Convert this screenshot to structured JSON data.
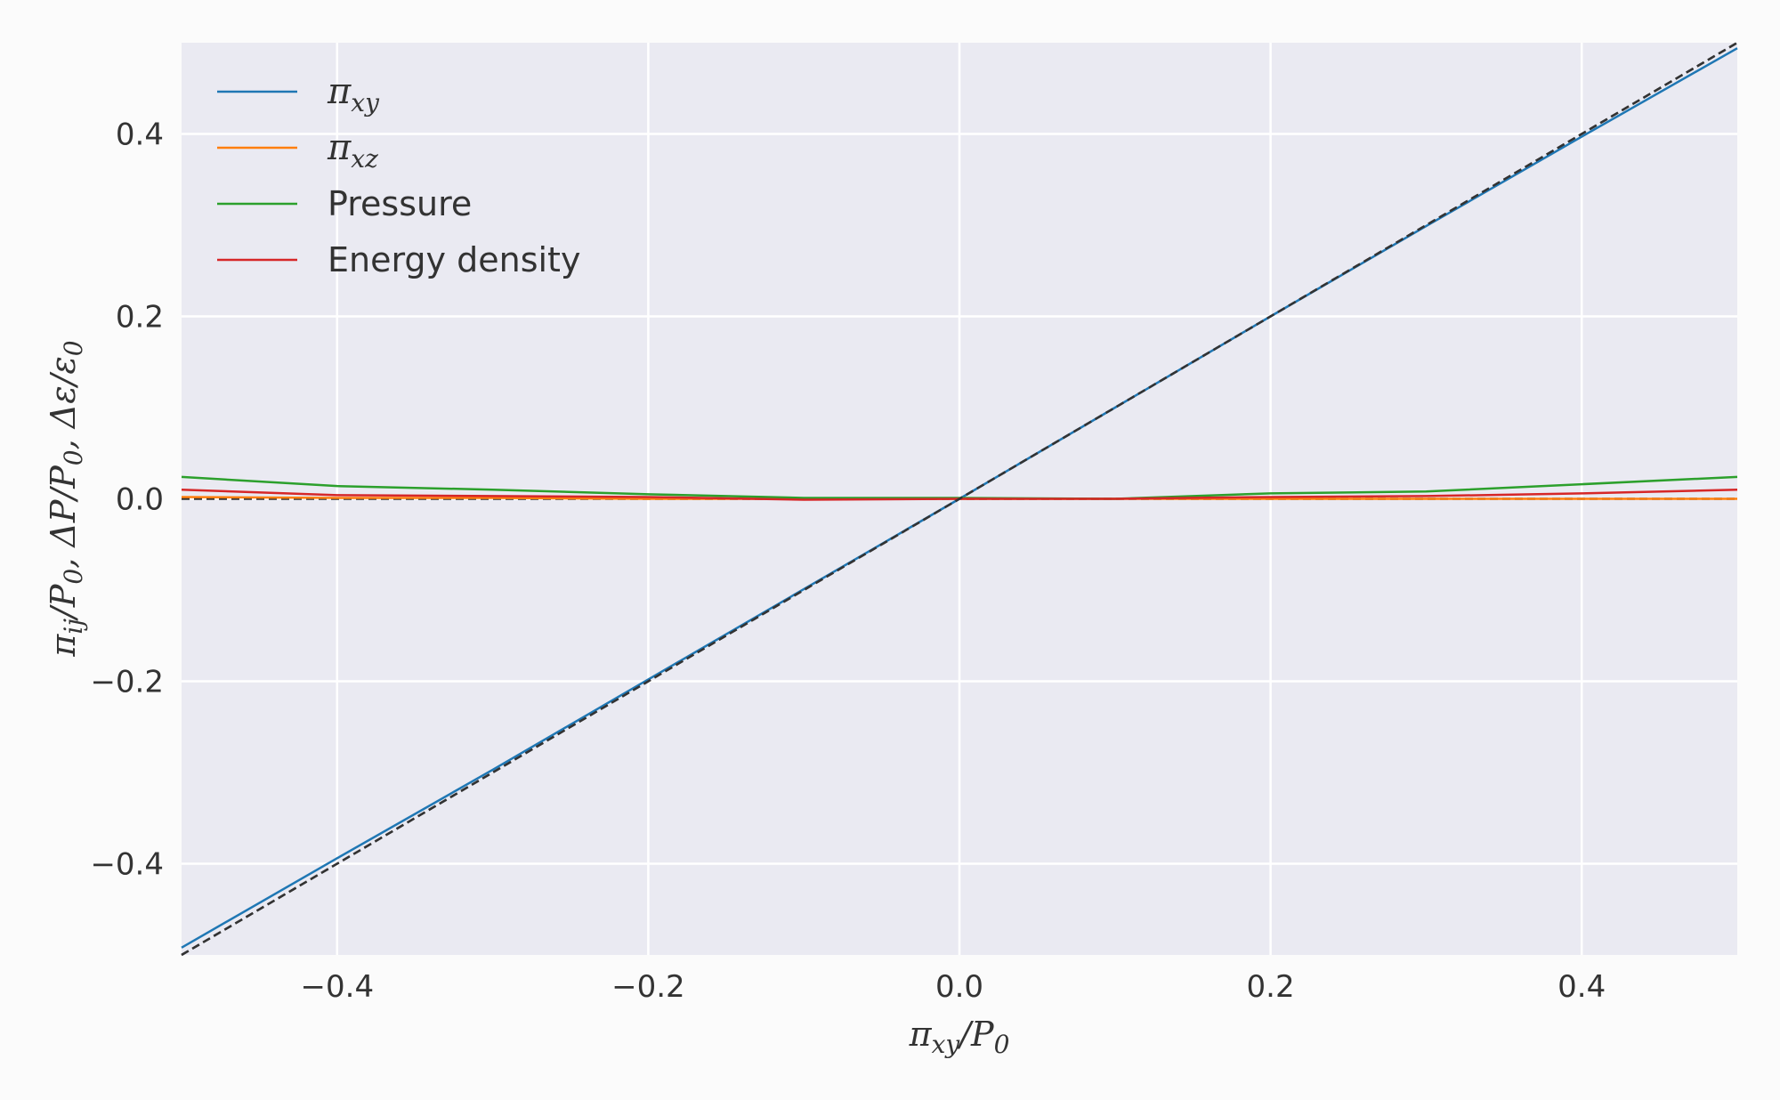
{
  "chart_data": {
    "type": "line",
    "title": "",
    "xlabel": "π_xy/P_0",
    "ylabel": "π_ij/P_0, ΔP/P_0, Δε/ε_0",
    "xlim": [
      -0.5,
      0.5
    ],
    "ylim": [
      -0.5,
      0.5
    ],
    "xticks": [
      -0.4,
      -0.2,
      0.0,
      0.2,
      0.4
    ],
    "yticks": [
      -0.4,
      -0.2,
      0.0,
      0.2,
      0.4
    ],
    "xtick_labels": [
      "−0.4",
      "−0.2",
      "0.0",
      "0.2",
      "0.4"
    ],
    "ytick_labels": [
      "−0.4",
      "−0.2",
      "0.0",
      "0.2",
      "0.4"
    ],
    "grid": true,
    "background": "#eaeaf2",
    "legend_position": "top-left",
    "x": [
      -0.5,
      -0.4,
      -0.3,
      -0.2,
      -0.1,
      0.0,
      0.1,
      0.2,
      0.3,
      0.4,
      0.5
    ],
    "series": [
      {
        "name": "π_xy",
        "legend_base": "π",
        "legend_sub": "xy",
        "color": "#1f77b4",
        "values": [
          -0.492,
          -0.394,
          -0.297,
          -0.198,
          -0.099,
          0.0,
          0.1,
          0.2,
          0.299,
          0.397,
          0.494
        ]
      },
      {
        "name": "π_xz",
        "legend_base": "π",
        "legend_sub": "xz",
        "color": "#ff7f0e",
        "values": [
          0.002,
          0.001,
          0.001,
          0.0,
          0.0,
          0.0,
          0.0,
          0.0,
          0.0,
          0.0,
          0.0
        ]
      },
      {
        "name": "Pressure",
        "legend_base": "Pressure",
        "legend_sub": "",
        "color": "#2ca02c",
        "values": [
          0.024,
          0.014,
          0.01,
          0.005,
          0.001,
          0.001,
          0.0,
          0.006,
          0.008,
          0.016,
          0.024
        ]
      },
      {
        "name": "Energy density",
        "legend_base": "Energy density",
        "legend_sub": "",
        "color": "#d62728",
        "values": [
          0.01,
          0.004,
          0.003,
          0.002,
          -0.001,
          0.0,
          0.0,
          0.002,
          0.003,
          0.006,
          0.01
        ]
      }
    ],
    "reference_lines": [
      {
        "style": "dashed",
        "color": "#333333",
        "x": [
          -0.5,
          0.5
        ],
        "y": [
          -0.5,
          0.5
        ]
      },
      {
        "style": "dashed",
        "color": "#333333",
        "x": [
          -0.5,
          0.5
        ],
        "y": [
          0.0,
          0.0
        ]
      }
    ]
  }
}
